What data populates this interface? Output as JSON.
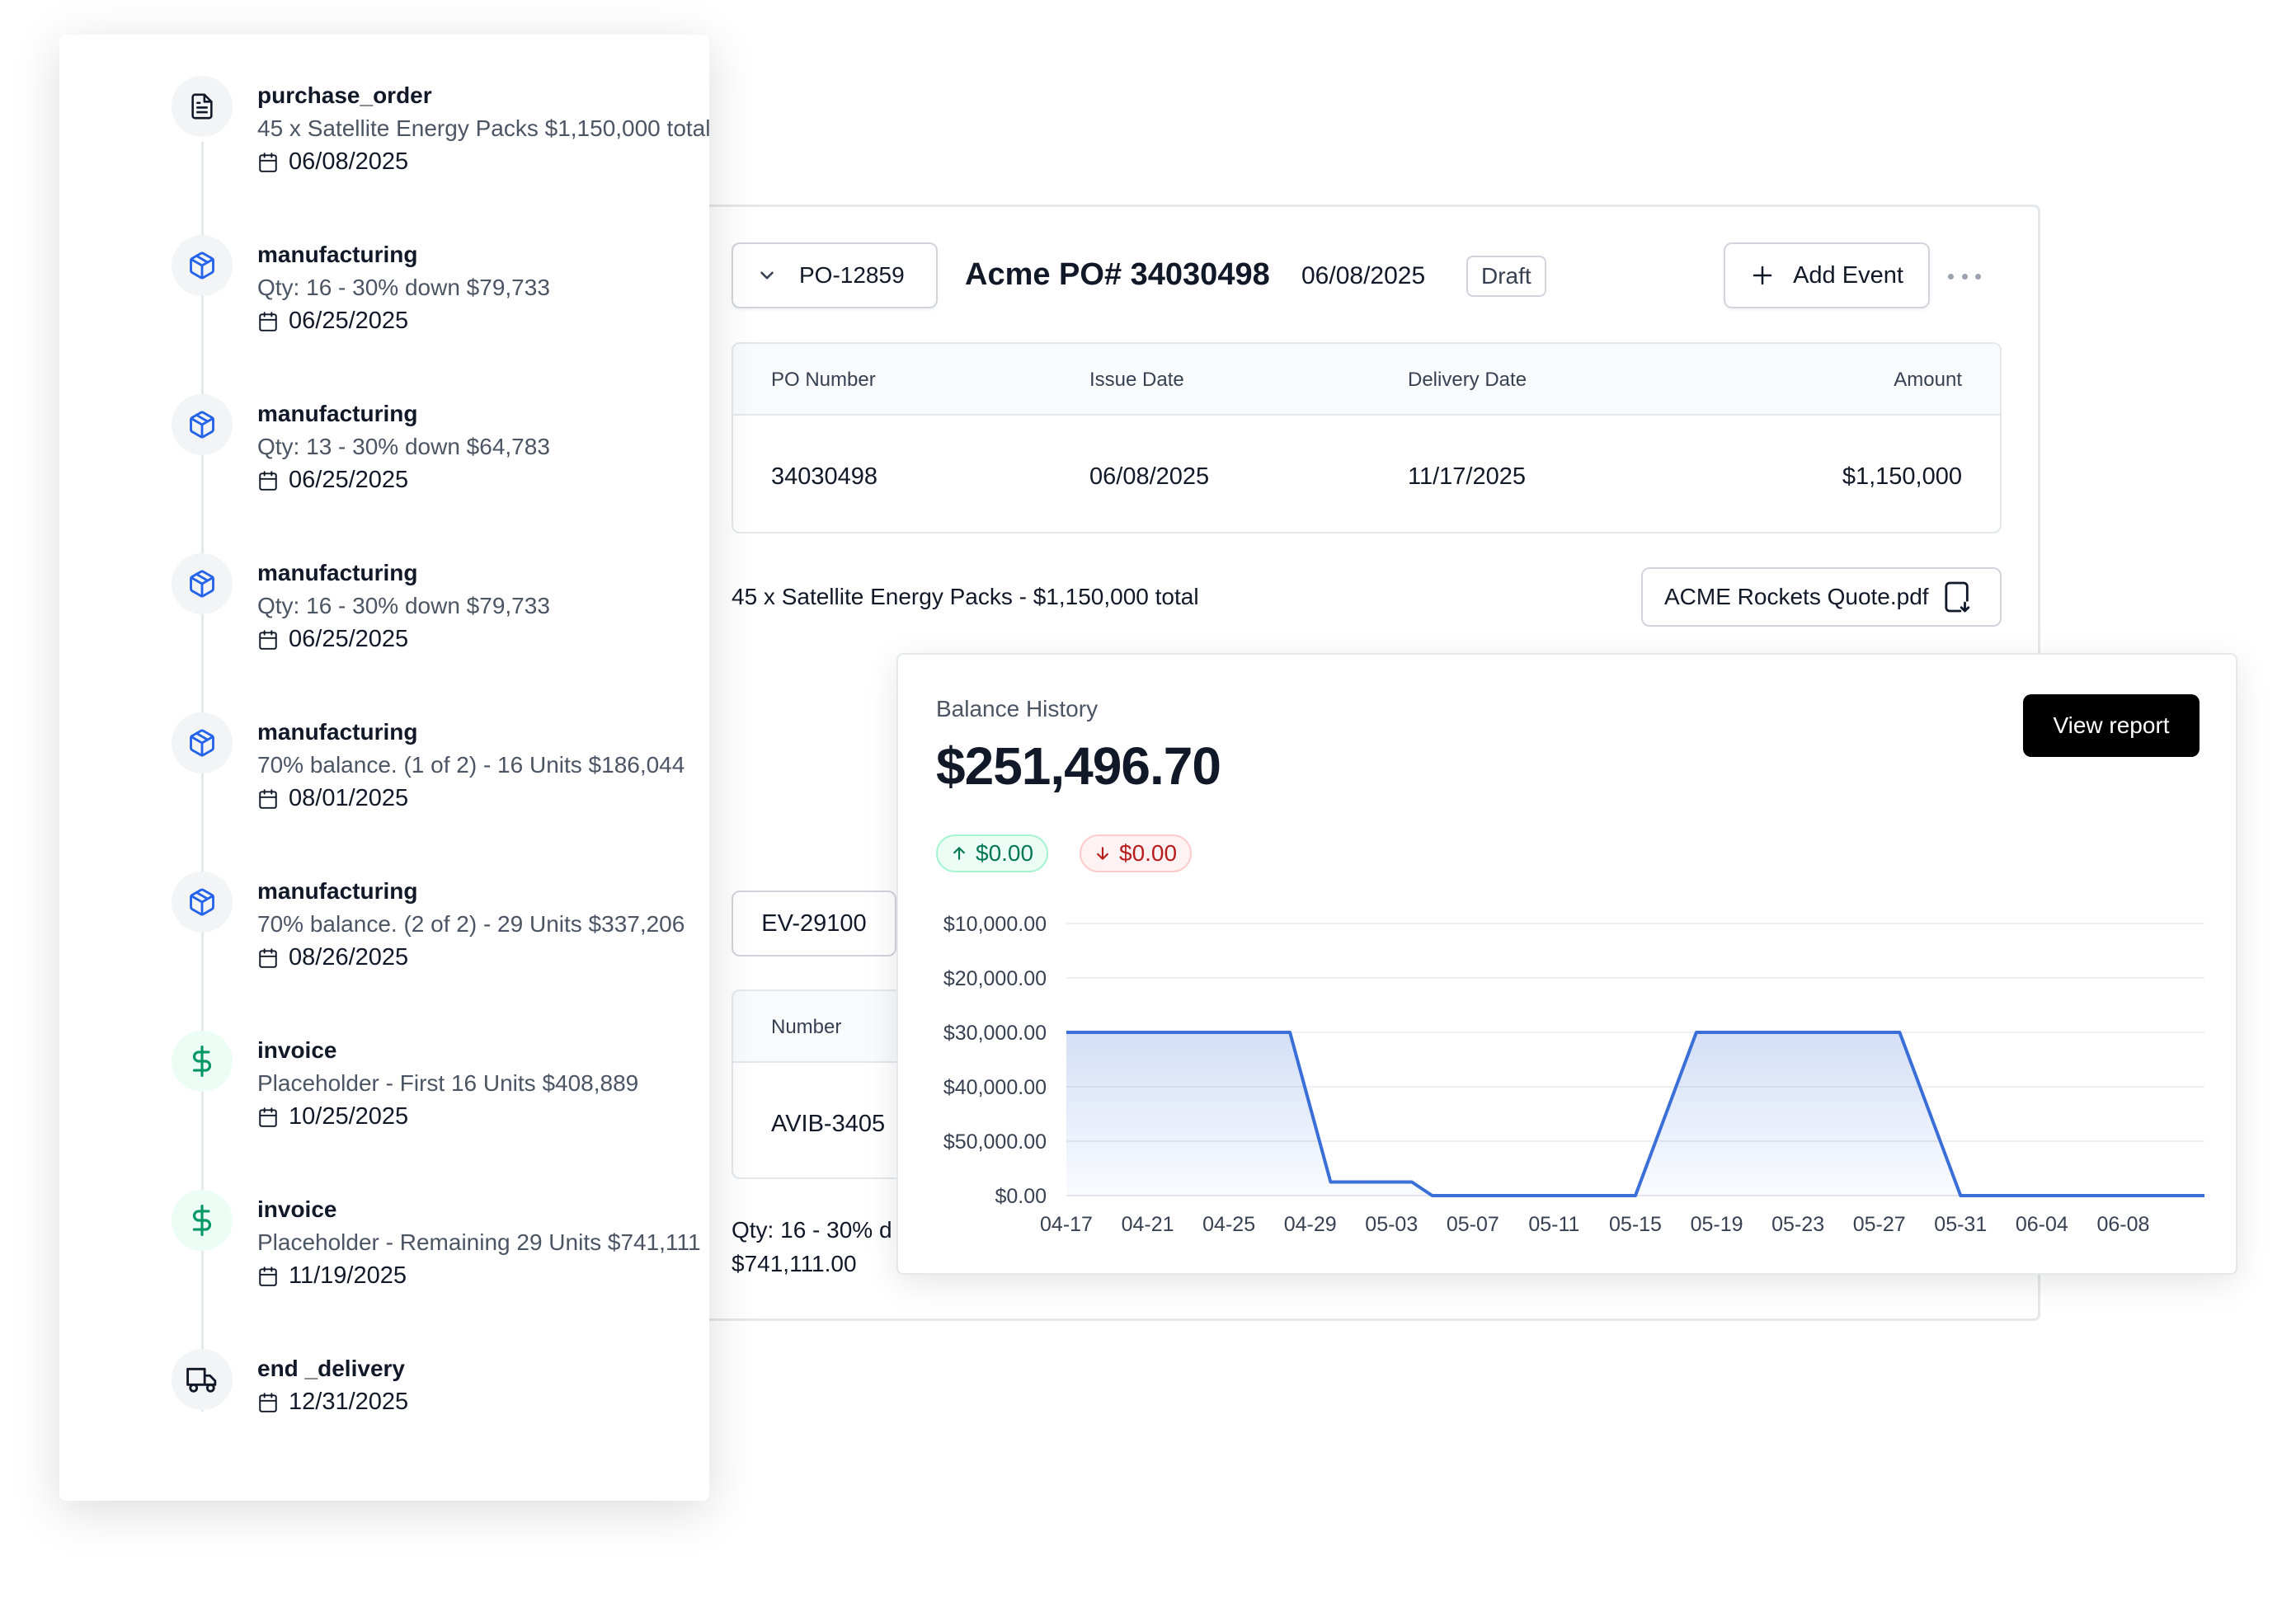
{
  "po": {
    "select_label": "PO-12859",
    "title": "Acme PO# 34030498",
    "date": "06/08/2025",
    "status": "Draft",
    "add_event_label": "Add Event",
    "table": {
      "headers": [
        "PO Number",
        "Issue Date",
        "Delivery Date",
        "Amount"
      ],
      "row": [
        "34030498",
        "06/08/2025",
        "11/17/2025",
        "$1,150,000"
      ]
    },
    "description": "45 x Satellite Energy Packs - $1,150,000 total",
    "attachment": "ACME Rockets Quote.pdf"
  },
  "event": {
    "select_label": "EV-29100",
    "table_header": "Number",
    "table_value": "AVIB-3405",
    "qty_text": "Qty: 16 - 30% d",
    "amount_text": "$741,111.00"
  },
  "balance": {
    "label": "Balance History",
    "value": "$251,496.70",
    "view_report_label": "View report",
    "change_up": "$0.00",
    "change_down": "$0.00",
    "colors": {
      "line": "#3b6fd8",
      "up": "#047857",
      "down": "#b91c1c"
    }
  },
  "chart_data": {
    "type": "area",
    "title": "",
    "xlabel": "",
    "ylabel": "",
    "y_tick_labels": [
      "$10,000.00",
      "$20,000.00",
      "$30,000.00",
      "$40,000.00",
      "$50,000.00",
      "$0.00"
    ],
    "x_tick_labels": [
      "04-17",
      "04-21",
      "04-25",
      "04-29",
      "05-03",
      "05-07",
      "05-11",
      "05-15",
      "05-19",
      "05-23",
      "05-27",
      "05-31",
      "06-04",
      "06-08"
    ],
    "grid": true,
    "series": [
      {
        "x": [
          "04-17",
          "04-28",
          "04-30",
          "05-04",
          "05-05",
          "05-15",
          "05-18",
          "05-28",
          "05-31",
          "06-12"
        ],
        "y": [
          30000,
          30000,
          2500,
          2500,
          0,
          0,
          30000,
          30000,
          0,
          0
        ]
      }
    ]
  },
  "timeline": [
    {
      "type": "purchase_order",
      "icon": "document-icon",
      "desc": "45 x Satellite Energy Packs $1,150,000 total",
      "date": "06/08/2025"
    },
    {
      "type": "manufacturing",
      "icon": "box-icon",
      "desc": "Qty: 16 - 30% down $79,733",
      "date": "06/25/2025"
    },
    {
      "type": "manufacturing",
      "icon": "box-icon",
      "desc": "Qty: 13 - 30% down $64,783",
      "date": "06/25/2025"
    },
    {
      "type": "manufacturing",
      "icon": "box-icon",
      "desc": "Qty: 16 - 30% down $79,733",
      "date": "06/25/2025"
    },
    {
      "type": "manufacturing",
      "icon": "box-icon",
      "desc": "70% balance. (1 of 2) - 16 Units $186,044",
      "date": "08/01/2025"
    },
    {
      "type": "manufacturing",
      "icon": "box-icon",
      "desc": "70% balance. (2 of 2) - 29 Units $337,206",
      "date": "08/26/2025"
    },
    {
      "type": "invoice",
      "icon": "dollar-icon",
      "desc": "Placeholder - First 16 Units $408,889",
      "date": "10/25/2025"
    },
    {
      "type": "invoice",
      "icon": "dollar-icon",
      "desc": "Placeholder - Remaining 29 Units $741,111",
      "date": "11/19/2025"
    },
    {
      "type": "end _delivery",
      "icon": "truck-icon",
      "desc": "",
      "date": "12/31/2025"
    }
  ]
}
